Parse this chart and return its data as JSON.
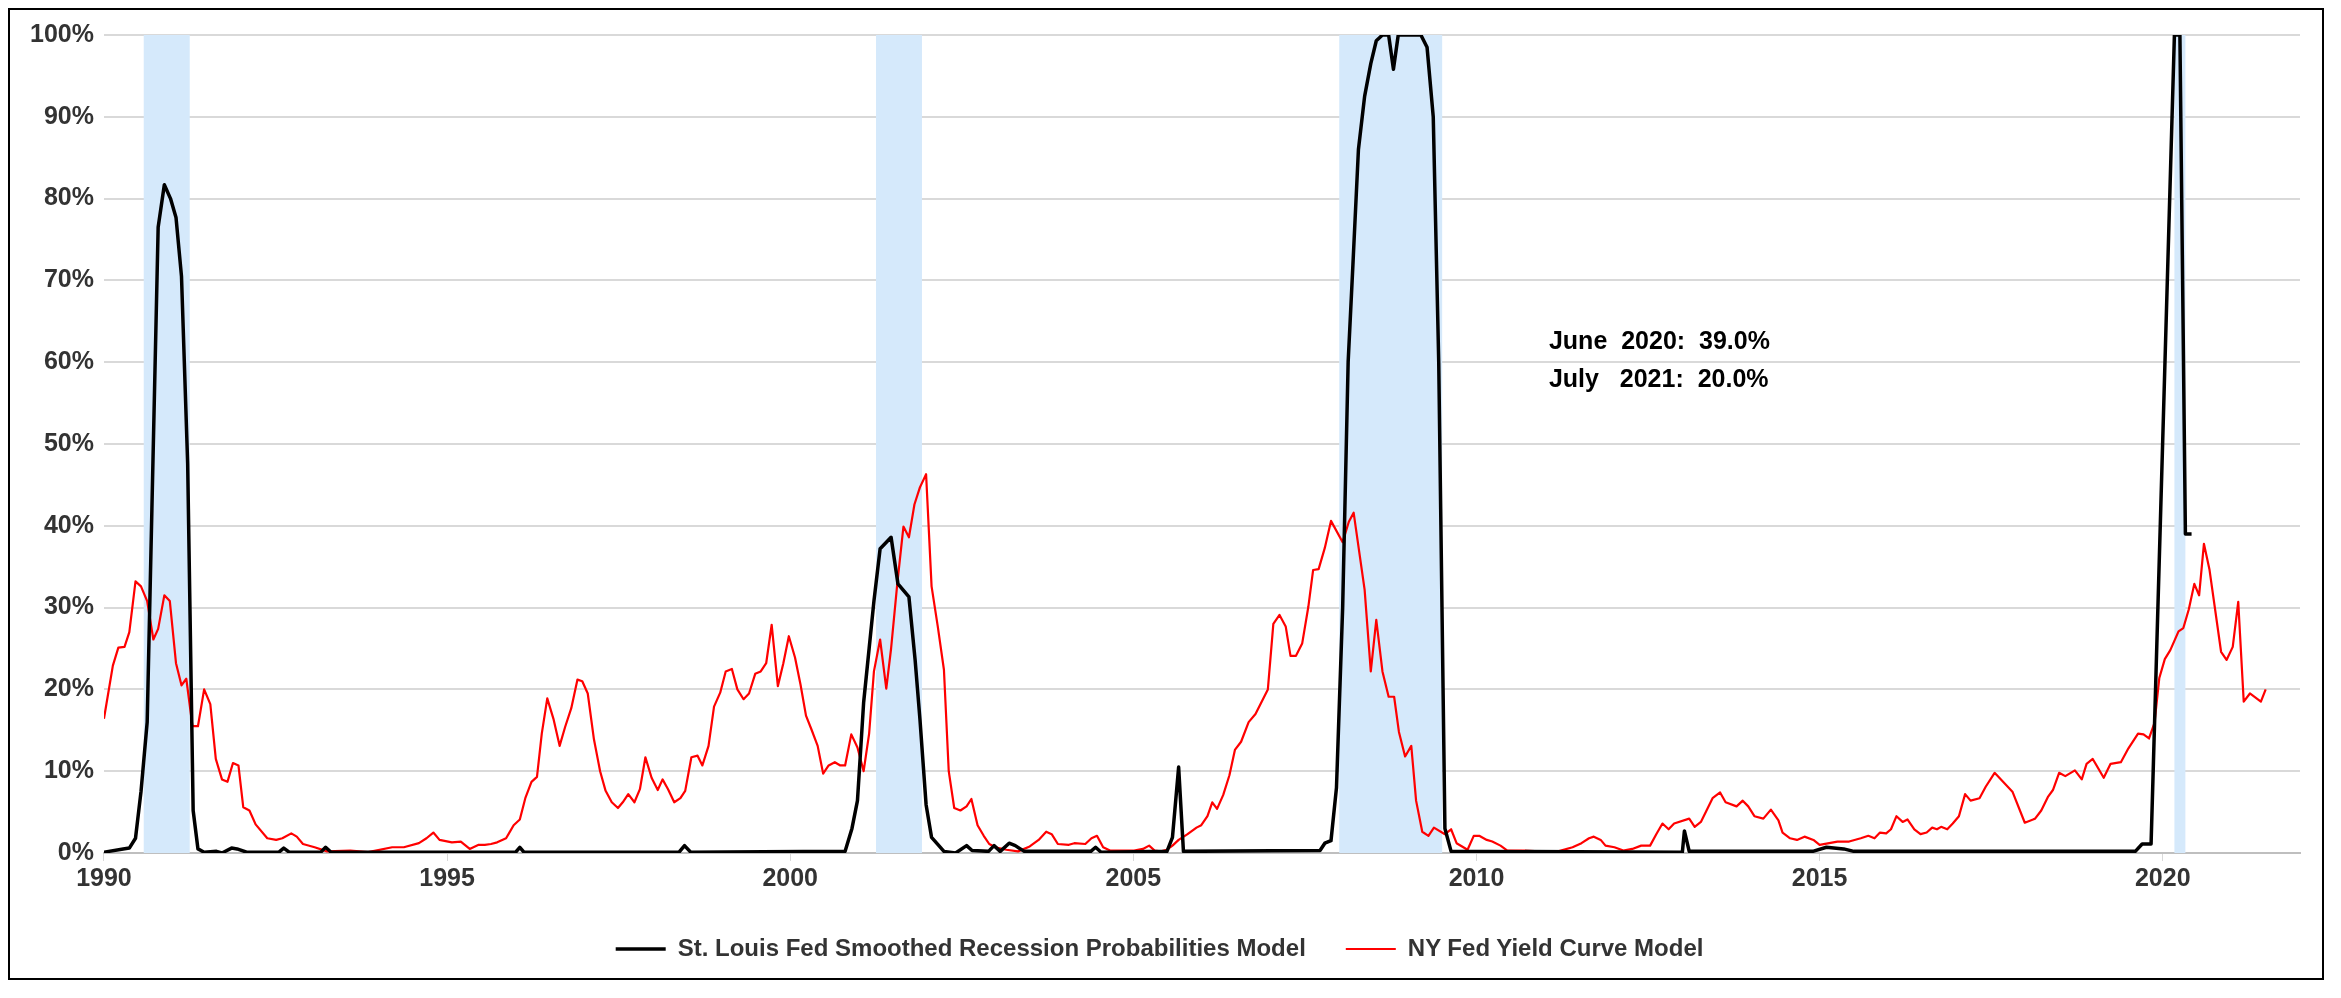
{
  "chart_data": {
    "type": "line",
    "xlim": [
      1990,
      2022
    ],
    "xticks": [
      1990,
      1995,
      2000,
      2005,
      2010,
      2015,
      2020
    ],
    "ylim": [
      0,
      100
    ],
    "yticks": [
      {
        "value": 0,
        "label": "0%"
      },
      {
        "value": 10,
        "label": "10%"
      },
      {
        "value": 20,
        "label": "20%"
      },
      {
        "value": 30,
        "label": "30%"
      },
      {
        "value": 40,
        "label": "40%"
      },
      {
        "value": 50,
        "label": "50%"
      },
      {
        "value": 60,
        "label": "60%"
      },
      {
        "value": 70,
        "label": "70%"
      },
      {
        "value": 80,
        "label": "80%"
      },
      {
        "value": 90,
        "label": "90%"
      },
      {
        "value": 100,
        "label": "100%"
      }
    ],
    "grid": "y",
    "legend": "bottom",
    "marker": "none",
    "line_style": "solid",
    "bands": [
      {
        "axis": "x",
        "from": 1990.58,
        "to": 1991.25,
        "color": "#d5e9fb"
      },
      {
        "axis": "x",
        "from": 2001.25,
        "to": 2001.92,
        "color": "#d5e9fb"
      },
      {
        "axis": "x",
        "from": 2008.0,
        "to": 2009.5,
        "color": "#d5e9fb"
      },
      {
        "axis": "x",
        "from": 2020.17,
        "to": 2020.33,
        "color": "#d5e9fb"
      }
    ],
    "annotations": [
      "June  2020:  39.0%",
      "July   2021:  20.0%"
    ],
    "series": [
      {
        "name": "St. Louis Fed Smoothed Recession Probabilities Model",
        "color": "#000000",
        "x": [
          1990,
          1990.28,
          1990.37,
          1990.46,
          1990.54,
          1990.63,
          1990.79,
          1990.88,
          1990.97,
          1991.05,
          1991.13,
          1991.22,
          1991.3,
          1991.37,
          1991.46,
          1991.64,
          1991.72,
          1991.86,
          1991.94,
          1992.08,
          1992.55,
          1992.62,
          1992.7,
          1993.16,
          1993.23,
          1993.31,
          1996,
          1996.06,
          1996.12,
          1998.38,
          1998.46,
          1998.55,
          2000.8,
          2000.9,
          2000.98,
          2001.07,
          2001.15,
          2001.22,
          2001.31,
          2001.47,
          2001.57,
          2001.73,
          2001.82,
          2001.89,
          2001.98,
          2002.06,
          2002.24,
          2002.41,
          2002.57,
          2002.65,
          2002.89,
          2002.97,
          2003.06,
          2003.19,
          2003.28,
          2003.41,
          2004.38,
          2004.45,
          2004.53,
          2005.49,
          2005.57,
          2005.66,
          2005.73,
          2007.72,
          2007.79,
          2007.88,
          2007.96,
          2008.05,
          2008.13,
          2008.2,
          2008.28,
          2008.37,
          2008.46,
          2008.54,
          2008.63,
          2008.72,
          2008.79,
          2008.86,
          2009.19,
          2009.28,
          2009.37,
          2009.45,
          2009.54,
          2009.63,
          2013,
          2013.03,
          2013.1,
          2014.9,
          2015.1,
          2015.35,
          2015.5,
          2019.6,
          2019.7,
          2019.83,
          2020.17,
          2020.25,
          2020.33,
          2020.42
        ],
        "values": [
          0.1,
          0.5,
          0.6,
          1.8,
          7.5,
          16,
          76.5,
          81.7,
          80,
          77.7,
          70.5,
          47.6,
          5.2,
          0.5,
          0.1,
          0.2,
          0,
          0.6,
          0.5,
          0.1,
          0.1,
          0.6,
          0.1,
          0.1,
          0.7,
          0.1,
          0.1,
          0.7,
          0.1,
          0.1,
          0.9,
          0.1,
          0.2,
          3,
          6.4,
          18.4,
          25,
          30.8,
          37.2,
          38.6,
          32.9,
          31.3,
          23.6,
          16.4,
          5.9,
          1.9,
          0.2,
          0,
          0.9,
          0.3,
          0.2,
          0.9,
          0.2,
          1.2,
          0.9,
          0.2,
          0.2,
          0.7,
          0.1,
          0.2,
          1.9,
          10.5,
          0.2,
          0.3,
          1.2,
          1.5,
          8,
          30,
          60,
          72,
          86,
          92.5,
          96.5,
          99.3,
          100,
          100,
          95.8,
          100,
          100,
          98.5,
          90,
          60,
          3,
          0.2,
          0.1,
          2.7,
          0.2,
          0.2,
          0.7,
          0.5,
          0.2,
          0.2,
          1.1,
          1.1,
          100,
          100,
          39,
          39
        ]
      },
      {
        "name": "NY Fed Yield Curve Model",
        "color": "#ff0000",
        "x": [
          1990,
          1990.13,
          1990.21,
          1990.3,
          1990.37,
          1990.46,
          1990.54,
          1990.63,
          1990.72,
          1990.79,
          1990.88,
          1990.96,
          1991.05,
          1991.13,
          1991.2,
          1991.29,
          1991.37,
          1991.46,
          1991.55,
          1991.63,
          1991.72,
          1991.8,
          1991.88,
          1991.96,
          1992.03,
          1992.12,
          1992.21,
          1992.38,
          1992.51,
          1992.6,
          1992.73,
          1992.81,
          1992.9,
          1993.07,
          1993.25,
          1993.59,
          1993.85,
          1994.2,
          1994.37,
          1994.59,
          1994.7,
          1994.8,
          1994.89,
          1995.07,
          1995.2,
          1995.33,
          1995.46,
          1995.55,
          1995.64,
          1995.73,
          1995.86,
          1995.97,
          1996.06,
          1996.14,
          1996.23,
          1996.31,
          1996.38,
          1996.46,
          1996.55,
          1996.64,
          1996.72,
          1996.81,
          1996.9,
          1996.97,
          1997.05,
          1997.14,
          1997.23,
          1997.31,
          1997.4,
          1997.49,
          1997.56,
          1997.64,
          1997.73,
          1997.81,
          1997.89,
          1997.98,
          1998.07,
          1998.14,
          1998.22,
          1998.31,
          1998.4,
          1998.47,
          1998.56,
          1998.65,
          1998.72,
          1998.81,
          1998.89,
          1998.98,
          1999.06,
          1999.15,
          1999.23,
          1999.32,
          1999.4,
          1999.49,
          1999.57,
          1999.65,
          1999.73,
          1999.82,
          1999.9,
          1999.98,
          2000.07,
          2000.15,
          2000.23,
          2000.31,
          2000.4,
          2000.48,
          2000.56,
          2000.65,
          2000.73,
          2000.8,
          2000.89,
          2000.98,
          2001.07,
          2001.15,
          2001.22,
          2001.31,
          2001.4,
          2001.47,
          2001.56,
          2001.65,
          2001.73,
          2001.81,
          2001.89,
          2001.98,
          2002.06,
          2002.15,
          2002.24,
          2002.31,
          2002.39,
          2002.48,
          2002.57,
          2002.64,
          2002.73,
          2002.82,
          2002.9,
          2002.99,
          2003.15,
          2003.32,
          2003.49,
          2003.62,
          2003.73,
          2003.81,
          2003.9,
          2004.06,
          2004.14,
          2004.3,
          2004.39,
          2004.47,
          2004.56,
          2004.66,
          2004.84,
          2005.01,
          2005.14,
          2005.23,
          2005.31,
          2005.4,
          2005.49,
          2005.57,
          2005.66,
          2005.79,
          2005.92,
          2005.99,
          2006.08,
          2006.15,
          2006.22,
          2006.31,
          2006.4,
          2006.48,
          2006.57,
          2006.68,
          2006.78,
          2006.96,
          2007.04,
          2007.13,
          2007.22,
          2007.29,
          2007.37,
          2007.46,
          2007.55,
          2007.62,
          2007.7,
          2007.79,
          2007.88,
          2008.05,
          2008.14,
          2008.21,
          2008.37,
          2008.46,
          2008.54,
          2008.63,
          2008.72,
          2008.8,
          2008.87,
          2008.96,
          2009.05,
          2009.12,
          2009.21,
          2009.3,
          2009.38,
          2009.54,
          2009.63,
          2009.71,
          2009.87,
          2009.96,
          2010.04,
          2010.15,
          2010.23,
          2010.35,
          2010.45,
          2010.67,
          2010.93,
          2011.19,
          2011.4,
          2011.53,
          2011.64,
          2011.71,
          2011.81,
          2011.88,
          2012.01,
          2012.14,
          2012.27,
          2012.4,
          2012.53,
          2012.62,
          2012.71,
          2012.8,
          2012.88,
          2013.1,
          2013.18,
          2013.27,
          2013.44,
          2013.55,
          2013.63,
          2013.79,
          2013.88,
          2013.96,
          2014.05,
          2014.18,
          2014.29,
          2014.4,
          2014.46,
          2014.57,
          2014.67,
          2014.78,
          2014.91,
          2015,
          2015.26,
          2015.43,
          2015.6,
          2015.71,
          2015.8,
          2015.88,
          2015.97,
          2016.04,
          2016.12,
          2016.21,
          2016.28,
          2016.38,
          2016.47,
          2016.56,
          2016.64,
          2016.71,
          2016.77,
          2016.86,
          2016.94,
          2017.03,
          2017.12,
          2017.2,
          2017.33,
          2017.42,
          2017.55,
          2017.81,
          2017.99,
          2018.14,
          2018.23,
          2018.33,
          2018.4,
          2018.49,
          2018.58,
          2018.72,
          2018.82,
          2018.89,
          2018.98,
          2019.14,
          2019.24,
          2019.39,
          2019.5,
          2019.64,
          2019.72,
          2019.8,
          2019.88,
          2019.95,
          2020.03,
          2020.11,
          2020.23,
          2020.3,
          2020.38,
          2020.46,
          2020.53,
          2020.6,
          2020.68,
          2020.85,
          2020.93,
          2021.02,
          2021.1,
          2021.18,
          2021.27,
          2021.43,
          2021.5
        ],
        "values": [
          16.4,
          22.9,
          25.1,
          25.2,
          27,
          33.2,
          32.6,
          30.8,
          26.1,
          27.4,
          31.5,
          30.8,
          23.2,
          20.5,
          21.3,
          15.5,
          15.5,
          20,
          18.2,
          11.5,
          9,
          8.7,
          11,
          10.7,
          5.6,
          5.2,
          3.5,
          1.8,
          1.6,
          1.8,
          2.4,
          2,
          1.1,
          0.7,
          0.2,
          0.3,
          0.1,
          0.7,
          0.7,
          1.2,
          1.8,
          2.5,
          1.6,
          1.3,
          1.4,
          0.5,
          1,
          1,
          1.1,
          1.3,
          1.8,
          3.4,
          4.1,
          6.7,
          8.7,
          9.3,
          14.6,
          18.9,
          16.4,
          13.1,
          15.4,
          17.7,
          21.2,
          21,
          19.5,
          13.9,
          10,
          7.6,
          6.2,
          5.5,
          6.2,
          7.2,
          6.2,
          7.8,
          11.7,
          9.2,
          7.7,
          9,
          7.8,
          6.2,
          6.7,
          7.6,
          11.7,
          11.9,
          10.7,
          13.1,
          17.9,
          19.6,
          22.2,
          22.5,
          20,
          18.8,
          19.5,
          21.9,
          22.2,
          23.2,
          27.9,
          20.4,
          23.2,
          26.5,
          23.9,
          20.6,
          16.8,
          15.1,
          13.1,
          9.7,
          10.7,
          11.1,
          10.7,
          10.7,
          14.5,
          12.9,
          10,
          14.6,
          22.2,
          26.1,
          20.1,
          25,
          32.9,
          39.9,
          38.6,
          42.6,
          44.7,
          46.3,
          32.6,
          27.7,
          22.4,
          10,
          5.5,
          5.2,
          5.7,
          6.6,
          3.4,
          2.1,
          1.1,
          0.7,
          0.4,
          0.2,
          0.8,
          1.6,
          2.6,
          2.3,
          1.1,
          1,
          1.2,
          1.1,
          1.8,
          2.1,
          0.7,
          0.3,
          0.3,
          0.3,
          0.5,
          0.9,
          0.3,
          0.2,
          0.4,
          0.9,
          1.6,
          2.3,
          3.1,
          3.4,
          4.5,
          6.2,
          5.4,
          7.1,
          9.5,
          12.6,
          13.6,
          16,
          17,
          20,
          28,
          29.1,
          27.7,
          24.1,
          24.1,
          25.6,
          30.1,
          34.6,
          34.7,
          37.3,
          40.6,
          38,
          40.5,
          41.6,
          32.2,
          22.2,
          28.5,
          22.2,
          19.1,
          19.1,
          14.8,
          11.8,
          13.1,
          6.4,
          2.6,
          2.1,
          3.1,
          2.3,
          2.9,
          1.2,
          0.4,
          2.1,
          2.1,
          1.6,
          1.4,
          0.9,
          0.3,
          0.3,
          0.2,
          0.2,
          0.7,
          1.2,
          1.8,
          2,
          1.6,
          0.9,
          0.7,
          0.3,
          0.5,
          0.9,
          0.9,
          2.3,
          3.6,
          2.9,
          3.6,
          4.2,
          3.2,
          3.8,
          6.7,
          7.4,
          6.2,
          5.7,
          6.4,
          5.7,
          4.5,
          4.2,
          5.3,
          4,
          2.5,
          1.8,
          1.6,
          2,
          1.6,
          1,
          1.4,
          1.4,
          1.8,
          2.1,
          1.8,
          2.5,
          2.4,
          2.9,
          4.5,
          3.8,
          4.1,
          2.9,
          2.3,
          2.5,
          3.1,
          2.9,
          3.2,
          2.9,
          3.6,
          4.5,
          7.2,
          6.4,
          6.7,
          8.1,
          9.8,
          7.5,
          3.7,
          4.2,
          5.2,
          6.9,
          7.7,
          9.8,
          9.4,
          10.1,
          9,
          10.9,
          11.5,
          9.2,
          10.9,
          11.1,
          12.8,
          14.6,
          14.5,
          14,
          15.9,
          21.4,
          23.7,
          24.8,
          27.1,
          27.5,
          29.8,
          32.9,
          31.5,
          37.8,
          34.7,
          24.6,
          23.6,
          25.2,
          30.7,
          18.5,
          19.5,
          18.5,
          20
        ]
      }
    ]
  }
}
